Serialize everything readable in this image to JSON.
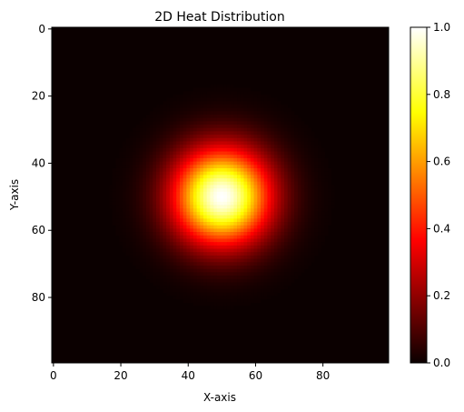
{
  "chart_data": {
    "type": "heatmap",
    "title": "2D Heat Distribution",
    "xlabel": "X-axis",
    "ylabel": "Y-axis",
    "grid_size": [
      100,
      100
    ],
    "xlim": [
      -0.5,
      99.5
    ],
    "ylim": [
      99.5,
      -0.5
    ],
    "x_ticks": [
      0,
      20,
      40,
      60,
      80
    ],
    "y_ticks": [
      0,
      20,
      40,
      60,
      80
    ],
    "peak_center": {
      "x": 50,
      "y": 50
    },
    "peak_value": 1.0,
    "spread_sigma": 10,
    "colormap": "hot",
    "colorbar_range": [
      0.0,
      1.0
    ],
    "colorbar_ticks": [
      0.0,
      0.2,
      0.4,
      0.6,
      0.8,
      1.0
    ],
    "colorbar_tick_labels": [
      "0.0",
      "0.2",
      "0.4",
      "0.6",
      "0.8",
      "1.0"
    ]
  }
}
